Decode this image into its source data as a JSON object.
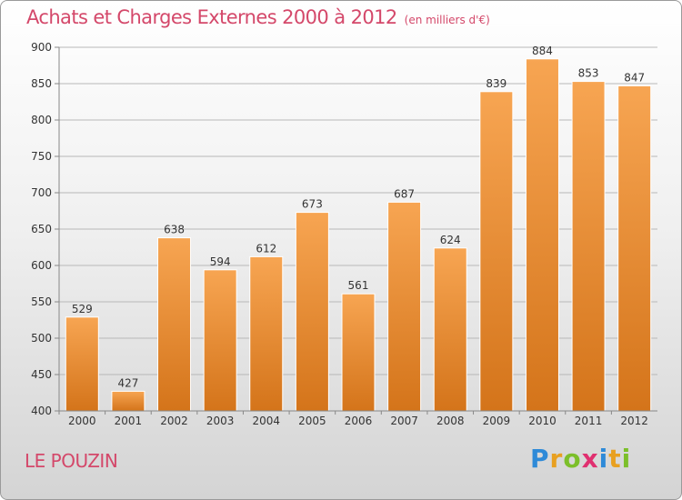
{
  "title": "Achats et Charges Externes 2000 à 2012",
  "subtitle": "(en milliers d'€)",
  "commune": "LE POUZIN",
  "logo": {
    "letters": [
      "P",
      "r",
      "o",
      "x",
      "i",
      "t",
      "i"
    ],
    "colors": [
      "#2e8ad8",
      "#e8a020",
      "#7cbf2a",
      "#e03070",
      "#2e8ad8",
      "#e8a020",
      "#7cbf2a"
    ]
  },
  "colors": {
    "bar_top": "#f7a552",
    "bar_bottom": "#d4741a",
    "title": "#d4486a"
  },
  "chart_data": {
    "type": "bar",
    "categories": [
      "2000",
      "2001",
      "2002",
      "2003",
      "2004",
      "2005",
      "2006",
      "2007",
      "2008",
      "2009",
      "2010",
      "2011",
      "2012"
    ],
    "values": [
      529,
      427,
      638,
      594,
      612,
      673,
      561,
      687,
      624,
      839,
      884,
      853,
      847
    ],
    "ylim": [
      400,
      900
    ],
    "yticks": [
      400,
      450,
      500,
      550,
      600,
      650,
      700,
      750,
      800,
      850,
      900
    ],
    "grid": true,
    "title": "Achats et Charges Externes 2000 à 2012",
    "subtitle": "(en milliers d'€)"
  }
}
